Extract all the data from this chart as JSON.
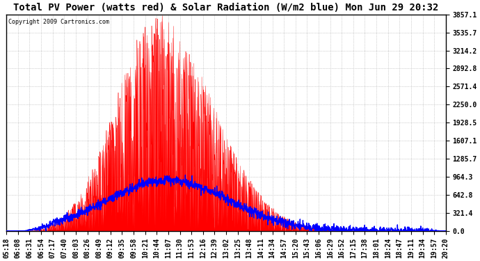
{
  "title": "Total PV Power (watts red) & Solar Radiation (W/m2 blue) Mon Jun 29 20:32",
  "copyright": "Copyright 2009 Cartronics.com",
  "y_max": 3857.1,
  "y_ticks": [
    0.0,
    321.4,
    642.8,
    964.3,
    1285.7,
    1607.1,
    1928.5,
    2250.0,
    2571.4,
    2892.8,
    3214.2,
    3535.7,
    3857.1
  ],
  "x_labels": [
    "05:18",
    "06:08",
    "06:31",
    "06:54",
    "07:17",
    "07:40",
    "08:03",
    "08:26",
    "08:49",
    "09:12",
    "09:35",
    "09:58",
    "10:21",
    "10:44",
    "11:07",
    "11:30",
    "11:53",
    "12:16",
    "12:39",
    "13:02",
    "13:25",
    "13:48",
    "14:11",
    "14:34",
    "14:57",
    "15:20",
    "15:43",
    "16:06",
    "16:29",
    "16:52",
    "17:15",
    "17:38",
    "18:01",
    "18:24",
    "18:47",
    "19:11",
    "19:34",
    "19:57",
    "20:20"
  ],
  "background_color": "#ffffff",
  "plot_bg_color": "#ffffff",
  "grid_color": "#aaaaaa",
  "red_fill_color": "#ff0000",
  "blue_line_color": "#0000ff",
  "title_fontsize": 10,
  "tick_fontsize": 7,
  "n_points": 2000,
  "pv_peak_value": 3857.1,
  "solar_peak_value": 900.0,
  "solar_noise_std": 40.0
}
